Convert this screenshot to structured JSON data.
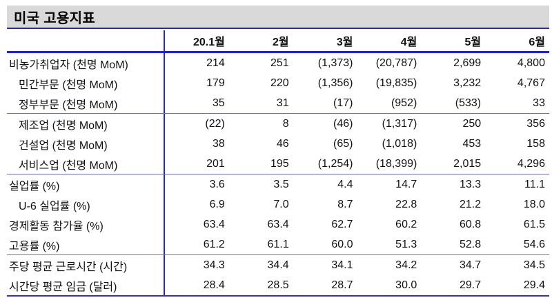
{
  "title": "미국 고용지표",
  "colors": {
    "banner_background": "#d9d9d9",
    "header_underline_blue": "#2222cc",
    "line_navy": "#2a2aa0",
    "section_divider": "#7070a8",
    "bottom_border": "#3333aa",
    "text": "#111111"
  },
  "chart_data": {
    "type": "table",
    "title": "미국 고용지표",
    "columns": [
      "20.1월",
      "2월",
      "3월",
      "4월",
      "5월",
      "6월"
    ],
    "sections": [
      {
        "rows": [
          {
            "label": "비농가취업자 (천명 MoM)",
            "indent": false,
            "values": [
              "214",
              "251",
              "(1,373)",
              "(20,787)",
              "2,699",
              "4,800"
            ]
          },
          {
            "label": "민간부문 (천명 MoM)",
            "indent": true,
            "values": [
              "179",
              "220",
              "(1,356)",
              "(19,835)",
              "3,232",
              "4,767"
            ]
          },
          {
            "label": "정부부문 (천명 MoM)",
            "indent": true,
            "values": [
              "35",
              "31",
              "(17)",
              "(952)",
              "(533)",
              "33"
            ]
          }
        ]
      },
      {
        "rows": [
          {
            "label": "제조업 (천명 MoM)",
            "indent": true,
            "values": [
              "(22)",
              "8",
              "(46)",
              "(1,317)",
              "250",
              "356"
            ]
          },
          {
            "label": "건설업 (천명 MoM)",
            "indent": true,
            "values": [
              "38",
              "46",
              "(65)",
              "(1,018)",
              "453",
              "158"
            ]
          },
          {
            "label": "서비스업 (천명 MoM)",
            "indent": true,
            "values": [
              "201",
              "195",
              "(1,254)",
              "(18,399)",
              "2,015",
              "4,296"
            ]
          }
        ]
      },
      {
        "rows": [
          {
            "label": "실업률 (%)",
            "indent": false,
            "values": [
              "3.6",
              "3.5",
              "4.4",
              "14.7",
              "13.3",
              "11.1"
            ]
          },
          {
            "label": "U-6 실업률 (%)",
            "indent": true,
            "values": [
              "6.9",
              "7.0",
              "8.7",
              "22.8",
              "21.2",
              "18.0"
            ]
          },
          {
            "label": "경제활동 참가율 (%)",
            "indent": false,
            "values": [
              "63.4",
              "63.4",
              "62.7",
              "60.2",
              "60.8",
              "61.5"
            ]
          },
          {
            "label": "고용률 (%)",
            "indent": false,
            "values": [
              "61.2",
              "61.1",
              "60.0",
              "51.3",
              "52.8",
              "54.6"
            ]
          }
        ]
      },
      {
        "rows": [
          {
            "label": "주당 평균 근로시간 (시간)",
            "indent": false,
            "values": [
              "34.3",
              "34.4",
              "34.1",
              "34.2",
              "34.7",
              "34.5"
            ]
          },
          {
            "label": "시간당 평균 임금 (달러)",
            "indent": false,
            "values": [
              "28.4",
              "28.5",
              "28.7",
              "30.0",
              "29.7",
              "29.4"
            ]
          }
        ]
      }
    ]
  }
}
